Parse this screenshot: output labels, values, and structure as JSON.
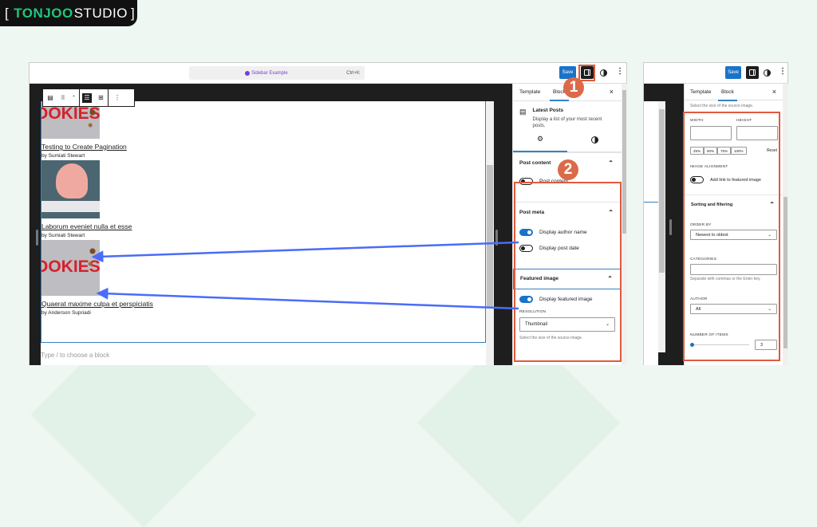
{
  "logo": {
    "bracket_open": "[",
    "brand_bold": "TONJOO",
    "brand_light": "STUDIO",
    "bracket_close": "]"
  },
  "colors": {
    "accent": "#1a73c8",
    "annotation_red": "#e05a3e",
    "badge": "#dc6a48",
    "arrow": "#4a6cf7",
    "logo_green": "#1fc67b"
  },
  "editor": {
    "command_palette": {
      "title": "Sidebar Example",
      "shortcut": "Ctrl+K"
    },
    "save_label": "Save",
    "posts": [
      {
        "title": "Testing to Create Pagination",
        "author": "by Sumiati Stewart",
        "image": "cookies"
      },
      {
        "title": "Laborum eveniet nulla et esse",
        "author": "by Sumiati Stewart",
        "image": "brain"
      },
      {
        "title": "Quaerat maxime culpa et perspiciatis",
        "author": "by Anderson Supriadi",
        "image": "cookies"
      }
    ],
    "image_text": "OOKIES",
    "block_placeholder": "Type / to choose a block"
  },
  "sidebar": {
    "tabs": [
      "Template",
      "Block"
    ],
    "active_tab": "Block",
    "close": "×",
    "block_name": "Latest Posts",
    "block_desc": "Display a list of your most recent posts.",
    "post_content": {
      "title": "Post content",
      "toggle": "Post content",
      "on": false
    },
    "post_meta": {
      "title": "Post meta",
      "author": "Display author name",
      "author_on": true,
      "date": "Display post date",
      "date_on": false
    },
    "featured": {
      "title": "Featured image",
      "toggle": "Display featured image",
      "on": true,
      "resolution_label": "RESOLUTION",
      "resolution": "Thumbnail",
      "help": "Select the size of the source image."
    }
  },
  "sidebar2": {
    "help_top": "Select the size of the source image.",
    "width_label": "WIDTH",
    "height_label": "HEIGHT",
    "percents": [
      "25%",
      "50%",
      "75%",
      "100%"
    ],
    "reset": "Reset",
    "alignment_label": "IMAGE ALIGNMENT",
    "link_toggle": "Add link to featured image",
    "link_on": false,
    "sorting_title": "Sorting and filtering",
    "order_label": "ORDER BY",
    "order_value": "Newest to oldest",
    "categories_label": "CATEGORIES",
    "categories_help": "Separate with commas or the Enter key.",
    "author_label": "AUTHOR",
    "author_value": "All",
    "items_label": "NUMBER OF ITEMS",
    "items_value": "3"
  },
  "annotations": {
    "badge1": "1",
    "badge2": "2"
  }
}
